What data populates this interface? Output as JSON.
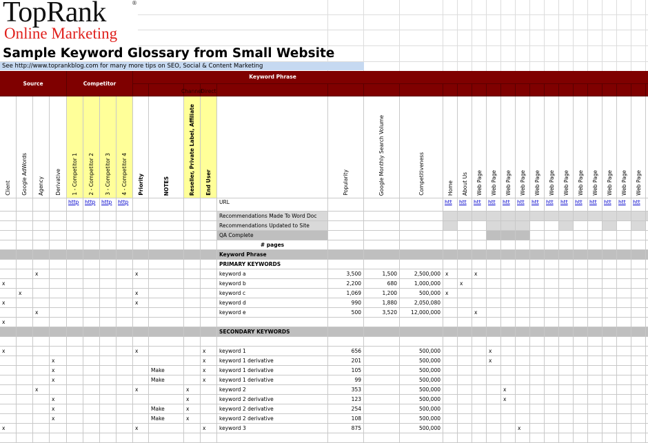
{
  "logo": {
    "name": "TopRank",
    "mark": "®",
    "tagline": "Online Marketing"
  },
  "title": "Sample Keyword Glossary from Small Website",
  "subtitle": "See http://www.toprankblog.com for many more tips on SEO, Social & Content Marketing",
  "group_headers": {
    "source": "Source",
    "competitor": "Competitor",
    "keyword_phrase": "Keyword Phrase",
    "channel": "Channel",
    "direct": "Direct"
  },
  "columns": [
    "Client",
    "Google AdWords",
    "Agency",
    "Derivative",
    "1 - Competitor 1",
    "2 - Competitor 2",
    "3 - Competitor 3",
    "4 - Competitor 4",
    "Priority",
    "NOTES",
    "Reseller, Private Label, Affiliate",
    "End User",
    null,
    "Popularity",
    "Google Monthly Search Volume",
    "Competitiveness",
    "Home",
    "About Us",
    "Web Page",
    "Web Page",
    "Web Page",
    "Web Page",
    "Web Page",
    "Web Page",
    "Web Page",
    "Web Page",
    "Web Page",
    "Web Page",
    "Web Page",
    "Web Page"
  ],
  "rows": [
    {
      "4": "http",
      "5": "http",
      "6": "http",
      "7": "http",
      "12": "URL",
      "16": "htt",
      "17": "htt",
      "18": "htt",
      "19": "htt",
      "20": "htt",
      "21": "htt",
      "22": "htt",
      "23": "htt",
      "24": "htt",
      "25": "htt",
      "26": "htt",
      "27": "htt",
      "28": "htt",
      "29": "htt"
    },
    {
      "12": "Recommendations Made To Word Doc"
    },
    {
      "12": "Recommendations Updated to Site"
    },
    {
      "12": "QA Complete"
    },
    {
      "12": "# pages"
    },
    {
      "12": "Keyword Phrase"
    },
    {
      "12": "PRIMARY KEYWORDS"
    },
    {
      "2": "x",
      "8": "x",
      "12": "keyword a",
      "13": "3,500",
      "14": "1,500",
      "15": "2,500,000",
      "16": "x",
      "18": "x"
    },
    {
      "0": "x",
      "12": "keyword b",
      "13": "2,200",
      "14": "680",
      "15": "1,000,000",
      "17": "x"
    },
    {
      "1": "x",
      "8": "x",
      "12": "keyword c",
      "13": "1,069",
      "14": "1,200",
      "15": "500,000",
      "16": "x"
    },
    {
      "0": "x",
      "8": "x",
      "12": "keyword d",
      "13": "990",
      "14": "1,880",
      "15": "2,050,080"
    },
    {
      "2": "x",
      "12": "keyword e",
      "13": "500",
      "14": "3,520",
      "15": "12,000,000",
      "18": "x"
    },
    {
      "0": "x"
    },
    {
      "12": "SECONDARY KEYWORDS"
    },
    {},
    {
      "0": "x",
      "8": "x",
      "11": "x",
      "12": "keyword 1",
      "13": "656",
      "15": "500,000",
      "19": "x"
    },
    {
      "3": "x",
      "11": "x",
      "12": "keyword 1 derivative",
      "13": "201",
      "15": "500,000",
      "19": "x"
    },
    {
      "3": "x",
      "9": "Make",
      "11": "x",
      "12": "keyword 1 derivative",
      "13": "105",
      "15": "500,000"
    },
    {
      "3": "x",
      "9": "Make",
      "11": "x",
      "12": "keyword 1 derivative",
      "13": "99",
      "15": "500,000"
    },
    {
      "2": "x",
      "8": "x",
      "10": "x",
      "12": "keyword 2",
      "13": "353",
      "15": "500,000",
      "20": "x"
    },
    {
      "3": "x",
      "10": "x",
      "12": "keyword 2 derivative",
      "13": "123",
      "15": "500,000",
      "20": "x"
    },
    {
      "3": "x",
      "9": "Make",
      "10": "x",
      "12": "keyword 2 derivative",
      "13": "254",
      "15": "500,000"
    },
    {
      "3": "x",
      "9": "Make",
      "10": "x",
      "12": "keyword 2 derivative",
      "13": "108",
      "15": "500,000"
    },
    {
      "0": "x",
      "8": "x",
      "11": "x",
      "12": "keyword 3",
      "13": "875",
      "15": "500,000",
      "21": "x"
    }
  ]
}
